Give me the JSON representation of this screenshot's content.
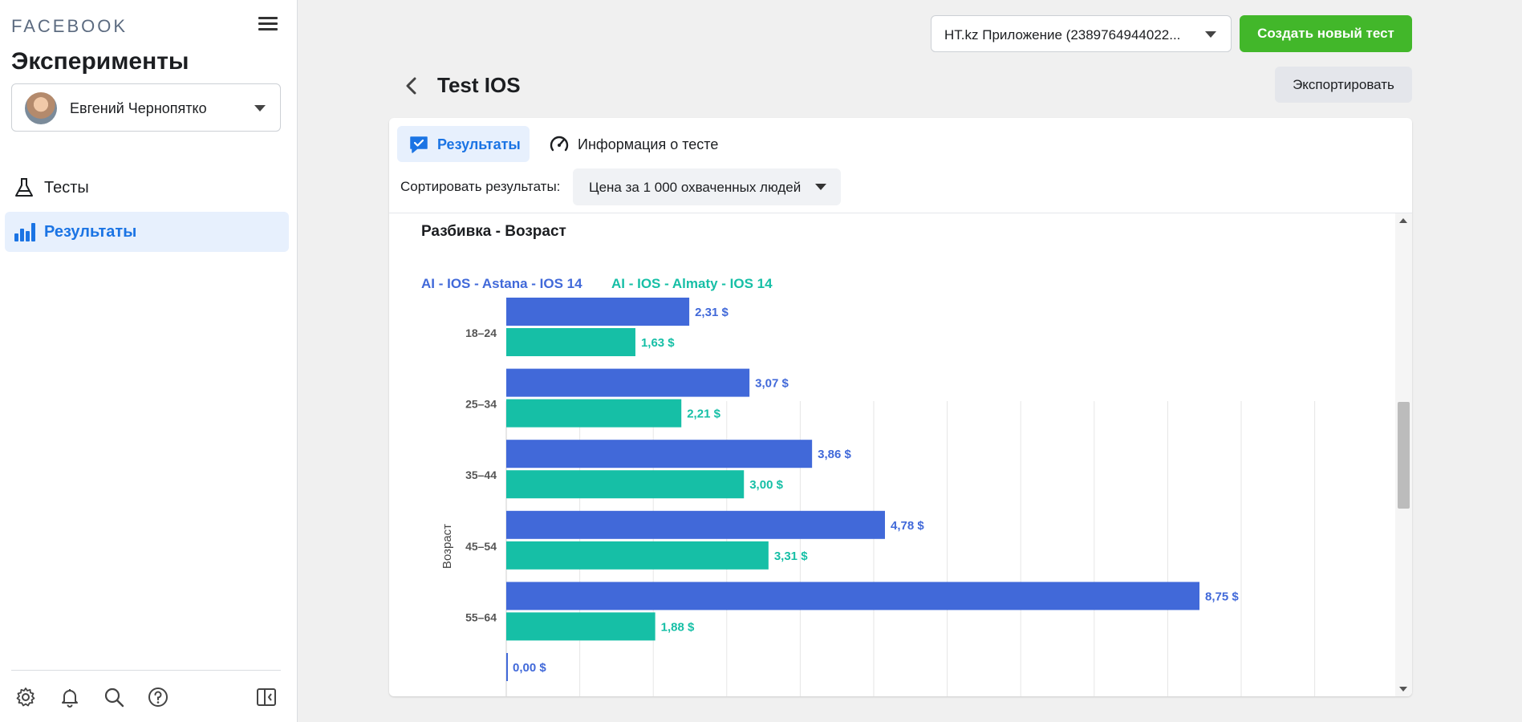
{
  "sidebar": {
    "brand": "FACEBOOK",
    "title": "Эксперименты",
    "account_name": "Евгений Чернопятко",
    "nav": [
      {
        "label": "Тесты",
        "icon": "flask-icon"
      },
      {
        "label": "Результаты",
        "icon": "bar-chart-icon"
      }
    ],
    "footer_icons": [
      "gear-icon",
      "bell-icon",
      "search-icon",
      "help-icon",
      "panel-toggle-icon"
    ]
  },
  "topbar": {
    "app_select": "HT.kz Приложение (2389764944022...",
    "create_button": "Создать новый тест",
    "export_button": "Экспортировать"
  },
  "page": {
    "title": "Test IOS",
    "tabs": [
      {
        "label": "Результаты",
        "icon": "chat-check-icon"
      },
      {
        "label": "Информация о тесте",
        "icon": "gauge-icon"
      }
    ],
    "sort_label": "Сортировать результаты:",
    "sort_value": "Цена за 1 000 охваченных людей"
  },
  "colors": {
    "series_a": "#4169d9",
    "series_b": "#16bfa6",
    "accent": "#1b74e4",
    "create": "#42b72a"
  },
  "chart_data": {
    "type": "bar",
    "orientation": "horizontal",
    "title": "Разбивка - Возраст",
    "ylabel": "Возраст",
    "categories": [
      "18–24",
      "25–34",
      "35–44",
      "45–54",
      "55–64"
    ],
    "series": [
      {
        "name": "AI - IOS - Astana - IOS 14",
        "values": [
          2.31,
          3.07,
          3.86,
          4.78,
          8.75
        ],
        "labels": [
          "2,31 $",
          "3,07 $",
          "3,86 $",
          "4,78 $",
          "8,75 $"
        ]
      },
      {
        "name": "AI - IOS - Almaty - IOS 14",
        "values": [
          1.63,
          2.21,
          3.0,
          3.31,
          1.88
        ],
        "labels": [
          "1,63 $",
          "2,21 $",
          "3,00 $",
          "3,31 $",
          "1,88 $"
        ]
      }
    ],
    "partial_row": {
      "value": 0.0,
      "label": "0,00 $"
    },
    "xlim": [
      0,
      8.75
    ],
    "grid": true,
    "legend_position": "top-left"
  }
}
